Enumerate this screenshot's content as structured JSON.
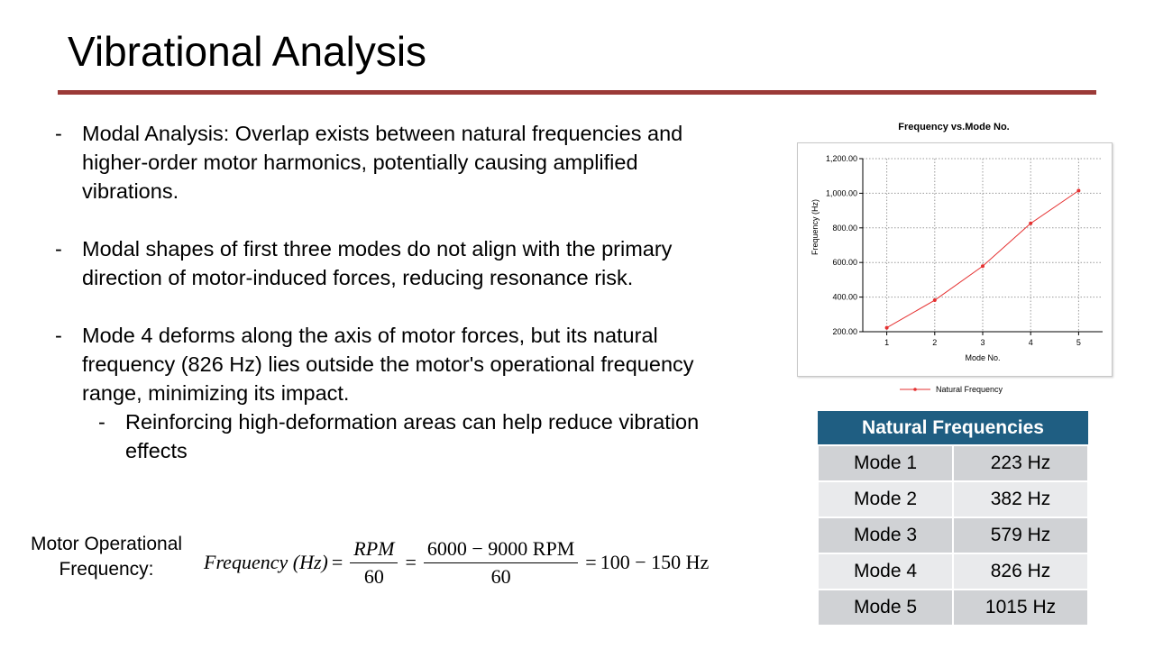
{
  "slide": {
    "title": "Vibrational Analysis",
    "accent_color": "#9b3a37"
  },
  "bullets": [
    {
      "dash": "-",
      "text": "Modal Analysis: Overlap exists between natural frequencies and higher-order motor harmonics, potentially causing amplified vibrations."
    },
    {
      "dash": "-",
      "text": "Modal shapes of first three modes do not align with the primary direction of motor-induced forces, reducing resonance risk."
    },
    {
      "dash": "-",
      "text": "Mode 4 deforms along the axis of motor forces, but its natural frequency (826 Hz) lies outside the motor's operational frequency range, minimizing its impact."
    },
    {
      "dash": "-",
      "text": "Reinforcing high-deformation areas can help reduce vibration effects"
    }
  ],
  "formula": {
    "label": "Motor Operational Frequency:",
    "lhs": "Frequency (Hz)",
    "eq": "=",
    "frac1_num": "RPM",
    "frac1_den": "60",
    "frac2_num": "6000 − 9000 RPM",
    "frac2_den": "60",
    "result": "100 − 150 Hz"
  },
  "chart_data": {
    "type": "line",
    "title": "Frequency vs.Mode No.",
    "xlabel": "Mode No.",
    "ylabel": "Frequency (Hz)",
    "x": [
      1,
      2,
      3,
      4,
      5
    ],
    "series": [
      {
        "name": "Natural Frequency",
        "values": [
          223,
          382,
          579,
          826,
          1015
        ],
        "color": "#e53030"
      }
    ],
    "xlim": [
      0.5,
      5.5
    ],
    "ylim": [
      200,
      1200
    ],
    "yticks": [
      "200.00",
      "400.00",
      "600.00",
      "800.00",
      "1,000.00",
      "1,200.00"
    ],
    "ytick_values": [
      200,
      400,
      600,
      800,
      1000,
      1200
    ],
    "xticks": [
      "1",
      "2",
      "3",
      "4",
      "5"
    ],
    "grid": true,
    "legend": "bottom"
  },
  "table": {
    "header": "Natural Frequencies",
    "header_color": "#1f5e82",
    "rows": [
      {
        "mode": "Mode 1",
        "freq": "223 Hz"
      },
      {
        "mode": "Mode 2",
        "freq": "382 Hz"
      },
      {
        "mode": "Mode 3",
        "freq": "579 Hz"
      },
      {
        "mode": "Mode 4",
        "freq": "826 Hz"
      },
      {
        "mode": "Mode 5",
        "freq": "1015 Hz"
      }
    ]
  }
}
